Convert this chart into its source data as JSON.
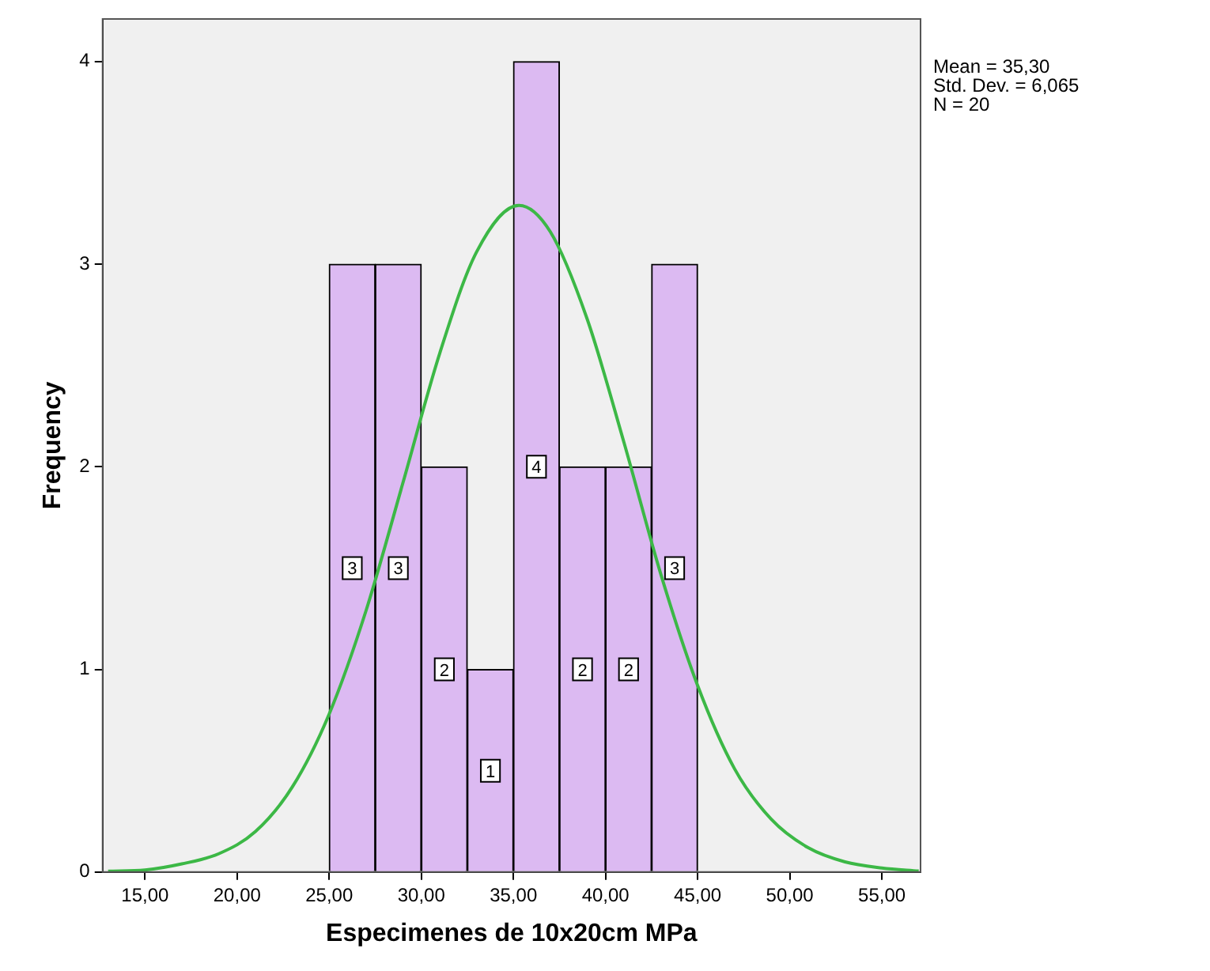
{
  "chart_data": {
    "type": "histogram",
    "xlabel": "Especimenes de 10x20cm MPa",
    "ylabel": "Frequency",
    "bins": [
      25,
      27.5,
      30,
      32.5,
      35,
      37.5,
      40,
      42.5,
      45
    ],
    "values": [
      3,
      3,
      2,
      1,
      4,
      2,
      2,
      3
    ],
    "color": "#dcbaf2",
    "value_labels": [
      "3",
      "3",
      "2",
      "1",
      "4",
      "2",
      "2",
      "3"
    ],
    "series": [
      {
        "type": "line",
        "color": "#3cb846",
        "x": [
          13,
          15,
          17,
          19,
          21,
          23,
          25,
          27,
          29,
          31,
          33,
          35.3,
          37,
          39,
          41,
          43,
          45,
          47,
          49,
          51,
          53,
          55,
          57
        ],
        "values": [
          0.004,
          0.01,
          0.04,
          0.09,
          0.2,
          0.42,
          0.78,
          1.29,
          1.92,
          2.56,
          3.06,
          3.29,
          3.16,
          2.73,
          2.12,
          1.47,
          0.92,
          0.51,
          0.26,
          0.12,
          0.05,
          0.02,
          0.005
        ]
      }
    ],
    "xlim": [
      12.7,
      57.1
    ],
    "xticks": [
      {
        "value": 15,
        "label": "15,00"
      },
      {
        "value": 20,
        "label": "20,00"
      },
      {
        "value": 25,
        "label": "25,00"
      },
      {
        "value": 30,
        "label": "30,00"
      },
      {
        "value": 35,
        "label": "35,00"
      },
      {
        "value": 40,
        "label": "40,00"
      },
      {
        "value": 45,
        "label": "45,00"
      },
      {
        "value": 50,
        "label": "50,00"
      },
      {
        "value": 55,
        "label": "55,00"
      }
    ],
    "ylim": [
      0,
      4.21
    ],
    "yticks": [
      0,
      1,
      2,
      3,
      4
    ],
    "grid": false,
    "legend": false,
    "annotations": [
      "Mean = 35,30",
      "Std. Dev. = 6,065",
      "N = 20"
    ]
  }
}
